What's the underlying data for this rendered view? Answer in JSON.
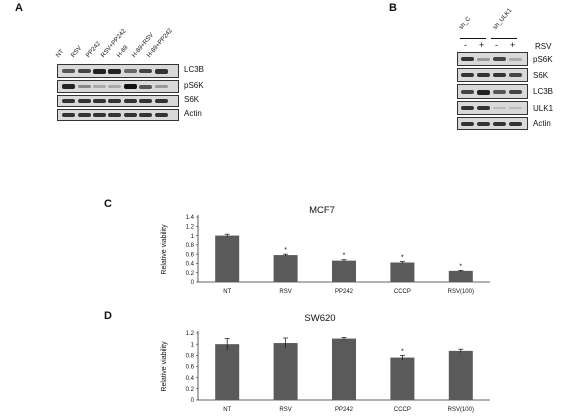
{
  "panels": {
    "a": "A",
    "b": "B",
    "c": "C",
    "d": "D"
  },
  "blot_a": {
    "lanes": [
      "NT",
      "RSV",
      "PP242",
      "RSV+PP242",
      "H-89",
      "H-89+RSV",
      "H-89+PP242"
    ],
    "rows": [
      "LC3B",
      "pS6K",
      "S6K",
      "Actin"
    ]
  },
  "blot_b": {
    "groups": [
      "sh_C",
      "sh_ULK1"
    ],
    "treatment_label": "RSV",
    "signs": [
      "-",
      "+",
      "-",
      "+"
    ],
    "rows": [
      "pS6K",
      "S6K",
      "LC3B",
      "ULK1",
      "Actin"
    ]
  },
  "chart_data": [
    {
      "type": "bar",
      "title": "MCF7",
      "ylabel": "Relative viability",
      "categories": [
        "NT",
        "RSV",
        "PP242",
        "CCCP",
        "RSV(100)"
      ],
      "values": [
        1.0,
        0.58,
        0.46,
        0.42,
        0.24
      ],
      "errors": [
        0.03,
        0.02,
        0.02,
        0.02,
        0.01
      ],
      "significance": [
        "",
        "*",
        "*",
        "*",
        "*"
      ],
      "ylim": [
        0,
        1.4
      ],
      "yticks": [
        "0",
        "0.2",
        "0.4",
        "0.6",
        "0.8",
        "1",
        "1.2",
        "1.4"
      ],
      "bar_color": "#5a5a5a"
    },
    {
      "type": "bar",
      "title": "SW620",
      "ylabel": "Relative viability",
      "categories": [
        "NT",
        "RSV",
        "PP242",
        "CCCP",
        "RSV(100)"
      ],
      "values": [
        1.0,
        1.02,
        1.1,
        0.76,
        0.88
      ],
      "errors": [
        0.1,
        0.09,
        0.02,
        0.04,
        0.03
      ],
      "significance": [
        "",
        "",
        "",
        "*",
        ""
      ],
      "ylim": [
        0,
        1.2
      ],
      "yticks": [
        "0",
        "0.2",
        "0.4",
        "0.6",
        "0.8",
        "1",
        "1.2"
      ],
      "bar_color": "#5a5a5a"
    }
  ]
}
